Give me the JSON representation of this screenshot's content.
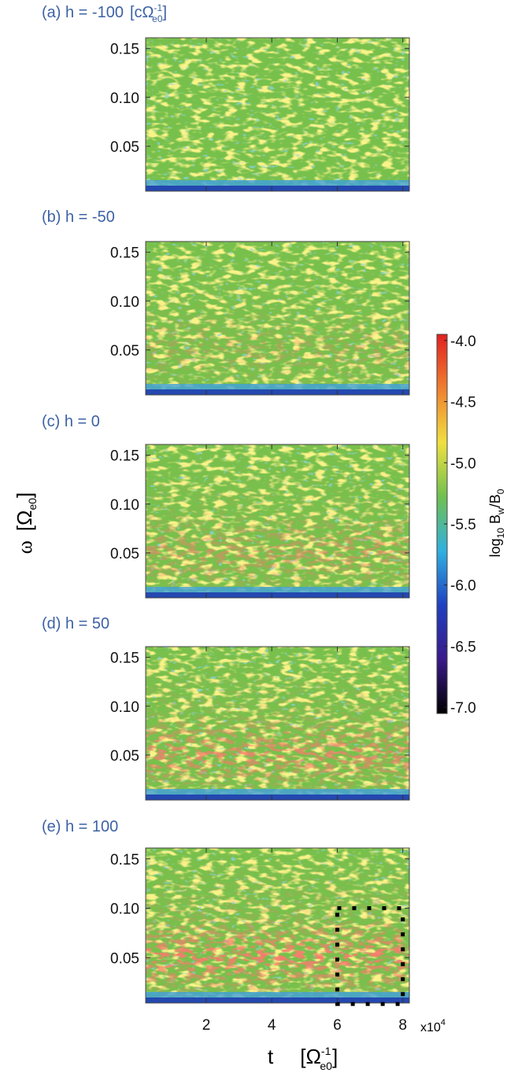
{
  "chart_data": [
    {
      "type": "heatmap",
      "title": "(a) h = -100",
      "title_unit": {
        "open": "[cΩ",
        "sup": "-1",
        "sub": "e0",
        "close": "]"
      },
      "xlim": [
        0.15,
        8.2
      ],
      "xticks": [
        2,
        4,
        6,
        8
      ],
      "ylim": [
        0.004,
        0.161
      ],
      "yticks": [
        0.05,
        {
          "value": 0.1,
          "label": "0.10"
        },
        0.15
      ]
    },
    {
      "type": "heatmap",
      "title": "(b) h =  -50",
      "xlim": [
        0.15,
        8.2
      ],
      "xticks": [
        2,
        4,
        6,
        8
      ],
      "ylim": [
        0.004,
        0.161
      ],
      "yticks": [
        0.05,
        {
          "value": 0.1,
          "label": "0.10"
        },
        0.15
      ]
    },
    {
      "type": "heatmap",
      "title": "(c) h =        0",
      "xlim": [
        0.15,
        8.2
      ],
      "xticks": [
        2,
        4,
        6,
        8
      ],
      "ylim": [
        0.004,
        0.161
      ],
      "yticks": [
        0.05,
        {
          "value": 0.1,
          "label": "0.10"
        },
        0.15
      ]
    },
    {
      "type": "heatmap",
      "title": "(d) h =   50",
      "xlim": [
        0.15,
        8.2
      ],
      "xticks": [
        2,
        4,
        6,
        8
      ],
      "ylim": [
        0.004,
        0.161
      ],
      "yticks": [
        0.05,
        {
          "value": 0.1,
          "label": "0.10"
        },
        0.15
      ]
    },
    {
      "type": "heatmap",
      "title": "(e) h =  100",
      "xlim": [
        0.15,
        8.2
      ],
      "xticks": [
        2,
        4,
        6,
        8
      ],
      "ylim": [
        0.004,
        0.161
      ],
      "yticks": [
        0.05,
        {
          "value": 0.1,
          "label": "0.10"
        },
        0.15
      ],
      "highlight": {
        "x": [
          6,
          8
        ],
        "y": [
          0.003,
          0.1
        ]
      }
    }
  ],
  "figure": {
    "ylabel": {
      "text": "ω",
      "open": "[Ω",
      "sub": "e0",
      "close": "]"
    },
    "xlabel": {
      "text": "t",
      "open": "[Ω",
      "sup": "-1",
      "sub": "e0",
      "close": "]"
    },
    "x_multiplier": {
      "base": "x10",
      "sup": "4"
    },
    "colorbar": {
      "label": {
        "base": "log",
        "sub1": "10",
        "mid": " B",
        "sub2": "w",
        "slash": "/B",
        "sub3": "0"
      },
      "clim": [
        -7.05,
        -3.95
      ],
      "ticks": [
        {
          "value": -4,
          "label": "-4.0"
        },
        -4.5,
        {
          "value": -5,
          "label": "-5.0"
        },
        -5.5,
        {
          "value": -6,
          "label": "-6.0"
        },
        -6.5,
        {
          "value": -7,
          "label": "-7.0"
        }
      ],
      "colormap": [
        "#000000",
        "#3a1a8a",
        "#2040c0",
        "#30b0e0",
        "#70c050",
        "#f0e040",
        "#f08030",
        "#e02020"
      ]
    }
  }
}
